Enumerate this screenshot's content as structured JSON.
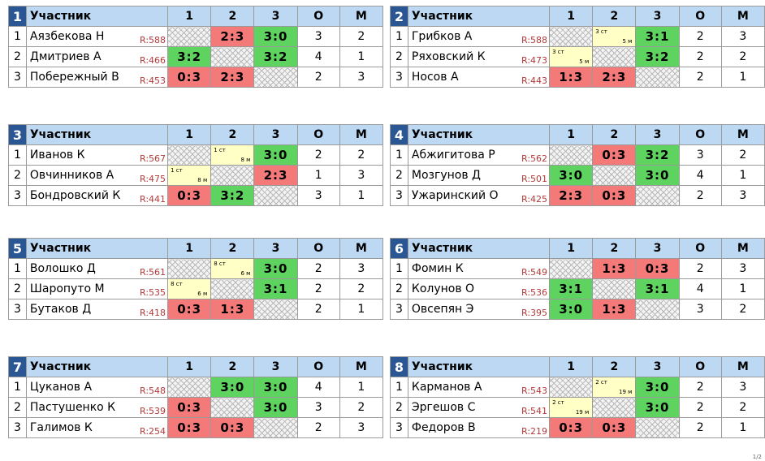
{
  "headers": {
    "name": "Участник",
    "c1": "1",
    "c2": "2",
    "c3": "3",
    "o": "O",
    "m": "M"
  },
  "groups": [
    {
      "num": "1",
      "rows": [
        {
          "idx": "1",
          "name": "Аязбекова Н",
          "rating": "R:588",
          "c1": {
            "t": "self",
            "v": ""
          },
          "c2": {
            "t": "loss",
            "v": "2:3"
          },
          "c3": {
            "t": "win",
            "v": "3:0"
          },
          "o": "3",
          "m": "2"
        },
        {
          "idx": "2",
          "name": "Дмитриев А",
          "rating": "R:466",
          "c1": {
            "t": "win",
            "v": "3:2"
          },
          "c2": {
            "t": "self",
            "v": ""
          },
          "c3": {
            "t": "win",
            "v": "3:2"
          },
          "o": "4",
          "m": "1"
        },
        {
          "idx": "3",
          "name": "Побережный В",
          "rating": "R:453",
          "c1": {
            "t": "loss",
            "v": "0:3"
          },
          "c2": {
            "t": "loss",
            "v": "2:3"
          },
          "c3": {
            "t": "self",
            "v": ""
          },
          "o": "2",
          "m": "3"
        }
      ]
    },
    {
      "num": "2",
      "rows": [
        {
          "idx": "1",
          "name": "Грибков А",
          "rating": "R:588",
          "c1": {
            "t": "self",
            "v": ""
          },
          "c2": {
            "t": "pend",
            "v": "",
            "a": "3 ст",
            "b": "5 м"
          },
          "c3": {
            "t": "win",
            "v": "3:1"
          },
          "o": "2",
          "m": "3"
        },
        {
          "idx": "2",
          "name": "Ряховский К",
          "rating": "R:473",
          "c1": {
            "t": "pend",
            "v": "",
            "a": "3 ст",
            "b": "5 м"
          },
          "c2": {
            "t": "self",
            "v": ""
          },
          "c3": {
            "t": "win",
            "v": "3:2"
          },
          "o": "2",
          "m": "2"
        },
        {
          "idx": "3",
          "name": "Носов А",
          "rating": "R:443",
          "c1": {
            "t": "loss",
            "v": "1:3"
          },
          "c2": {
            "t": "loss",
            "v": "2:3"
          },
          "c3": {
            "t": "self",
            "v": ""
          },
          "o": "2",
          "m": "1"
        }
      ]
    },
    {
      "num": "3",
      "rows": [
        {
          "idx": "1",
          "name": "Иванов К",
          "rating": "R:567",
          "c1": {
            "t": "self",
            "v": ""
          },
          "c2": {
            "t": "pend",
            "v": "",
            "a": "1 ст",
            "b": "8 м"
          },
          "c3": {
            "t": "win",
            "v": "3:0"
          },
          "o": "2",
          "m": "2"
        },
        {
          "idx": "2",
          "name": "Овчинников А",
          "rating": "R:475",
          "c1": {
            "t": "pend",
            "v": "",
            "a": "1 ст",
            "b": "8 м"
          },
          "c2": {
            "t": "self",
            "v": ""
          },
          "c3": {
            "t": "loss",
            "v": "2:3"
          },
          "o": "1",
          "m": "3"
        },
        {
          "idx": "3",
          "name": "Бондровский К",
          "rating": "R:441",
          "c1": {
            "t": "loss",
            "v": "0:3"
          },
          "c2": {
            "t": "win",
            "v": "3:2"
          },
          "c3": {
            "t": "self",
            "v": ""
          },
          "o": "3",
          "m": "1"
        }
      ]
    },
    {
      "num": "4",
      "rows": [
        {
          "idx": "1",
          "name": "Абжигитова Р",
          "rating": "R:562",
          "c1": {
            "t": "self",
            "v": ""
          },
          "c2": {
            "t": "loss",
            "v": "0:3"
          },
          "c3": {
            "t": "win",
            "v": "3:2"
          },
          "o": "3",
          "m": "2"
        },
        {
          "idx": "2",
          "name": "Мозгунов Д",
          "rating": "R:501",
          "c1": {
            "t": "win",
            "v": "3:0"
          },
          "c2": {
            "t": "self",
            "v": ""
          },
          "c3": {
            "t": "win",
            "v": "3:0"
          },
          "o": "4",
          "m": "1"
        },
        {
          "idx": "3",
          "name": "Ужаринский О",
          "rating": "R:425",
          "c1": {
            "t": "loss",
            "v": "2:3"
          },
          "c2": {
            "t": "loss",
            "v": "0:3"
          },
          "c3": {
            "t": "self",
            "v": ""
          },
          "o": "2",
          "m": "3"
        }
      ]
    },
    {
      "num": "5",
      "rows": [
        {
          "idx": "1",
          "name": "Волошко Д",
          "rating": "R:561",
          "c1": {
            "t": "self",
            "v": ""
          },
          "c2": {
            "t": "pend",
            "v": "",
            "a": "8 ст",
            "b": "6 м"
          },
          "c3": {
            "t": "win",
            "v": "3:0"
          },
          "o": "2",
          "m": "3"
        },
        {
          "idx": "2",
          "name": "Шаропуто М",
          "rating": "R:535",
          "c1": {
            "t": "pend",
            "v": "",
            "a": "8 ст",
            "b": "6 м"
          },
          "c2": {
            "t": "self",
            "v": ""
          },
          "c3": {
            "t": "win",
            "v": "3:1"
          },
          "o": "2",
          "m": "2"
        },
        {
          "idx": "3",
          "name": "Бутаков Д",
          "rating": "R:418",
          "c1": {
            "t": "loss",
            "v": "0:3"
          },
          "c2": {
            "t": "loss",
            "v": "1:3"
          },
          "c3": {
            "t": "self",
            "v": ""
          },
          "o": "2",
          "m": "1"
        }
      ]
    },
    {
      "num": "6",
      "rows": [
        {
          "idx": "1",
          "name": "Фомин К",
          "rating": "R:549",
          "c1": {
            "t": "self",
            "v": ""
          },
          "c2": {
            "t": "loss",
            "v": "1:3"
          },
          "c3": {
            "t": "loss",
            "v": "0:3"
          },
          "o": "2",
          "m": "3"
        },
        {
          "idx": "2",
          "name": "Колунов О",
          "rating": "R:536",
          "c1": {
            "t": "win",
            "v": "3:1"
          },
          "c2": {
            "t": "self",
            "v": ""
          },
          "c3": {
            "t": "win",
            "v": "3:1"
          },
          "o": "4",
          "m": "1"
        },
        {
          "idx": "3",
          "name": "Овсепян Э",
          "rating": "R:395",
          "c1": {
            "t": "win",
            "v": "3:0"
          },
          "c2": {
            "t": "loss",
            "v": "1:3"
          },
          "c3": {
            "t": "self",
            "v": ""
          },
          "o": "3",
          "m": "2"
        }
      ]
    },
    {
      "num": "7",
      "rows": [
        {
          "idx": "1",
          "name": "Цуканов А",
          "rating": "R:548",
          "c1": {
            "t": "self",
            "v": ""
          },
          "c2": {
            "t": "win",
            "v": "3:0"
          },
          "c3": {
            "t": "win",
            "v": "3:0"
          },
          "o": "4",
          "m": "1"
        },
        {
          "idx": "2",
          "name": "Пастушенко К",
          "rating": "R:539",
          "c1": {
            "t": "loss",
            "v": "0:3"
          },
          "c2": {
            "t": "self",
            "v": ""
          },
          "c3": {
            "t": "win",
            "v": "3:0"
          },
          "o": "3",
          "m": "2"
        },
        {
          "idx": "3",
          "name": "Галимов К",
          "rating": "R:254",
          "c1": {
            "t": "loss",
            "v": "0:3"
          },
          "c2": {
            "t": "loss",
            "v": "0:3"
          },
          "c3": {
            "t": "self",
            "v": ""
          },
          "o": "2",
          "m": "3"
        }
      ]
    },
    {
      "num": "8",
      "rows": [
        {
          "idx": "1",
          "name": "Карманов А",
          "rating": "R:543",
          "c1": {
            "t": "self",
            "v": ""
          },
          "c2": {
            "t": "pend",
            "v": "",
            "a": "2 ст",
            "b": "19 м"
          },
          "c3": {
            "t": "win",
            "v": "3:0"
          },
          "o": "2",
          "m": "3"
        },
        {
          "idx": "2",
          "name": "Эргешов С",
          "rating": "R:541",
          "c1": {
            "t": "pend",
            "v": "",
            "a": "2 ст",
            "b": "19 м"
          },
          "c2": {
            "t": "self",
            "v": ""
          },
          "c3": {
            "t": "win",
            "v": "3:0"
          },
          "o": "2",
          "m": "2"
        },
        {
          "idx": "3",
          "name": "Федоров В",
          "rating": "R:219",
          "c1": {
            "t": "loss",
            "v": "0:3"
          },
          "c2": {
            "t": "loss",
            "v": "0:3"
          },
          "c3": {
            "t": "self",
            "v": ""
          },
          "o": "2",
          "m": "1"
        }
      ]
    }
  ],
  "footer": "1/2"
}
